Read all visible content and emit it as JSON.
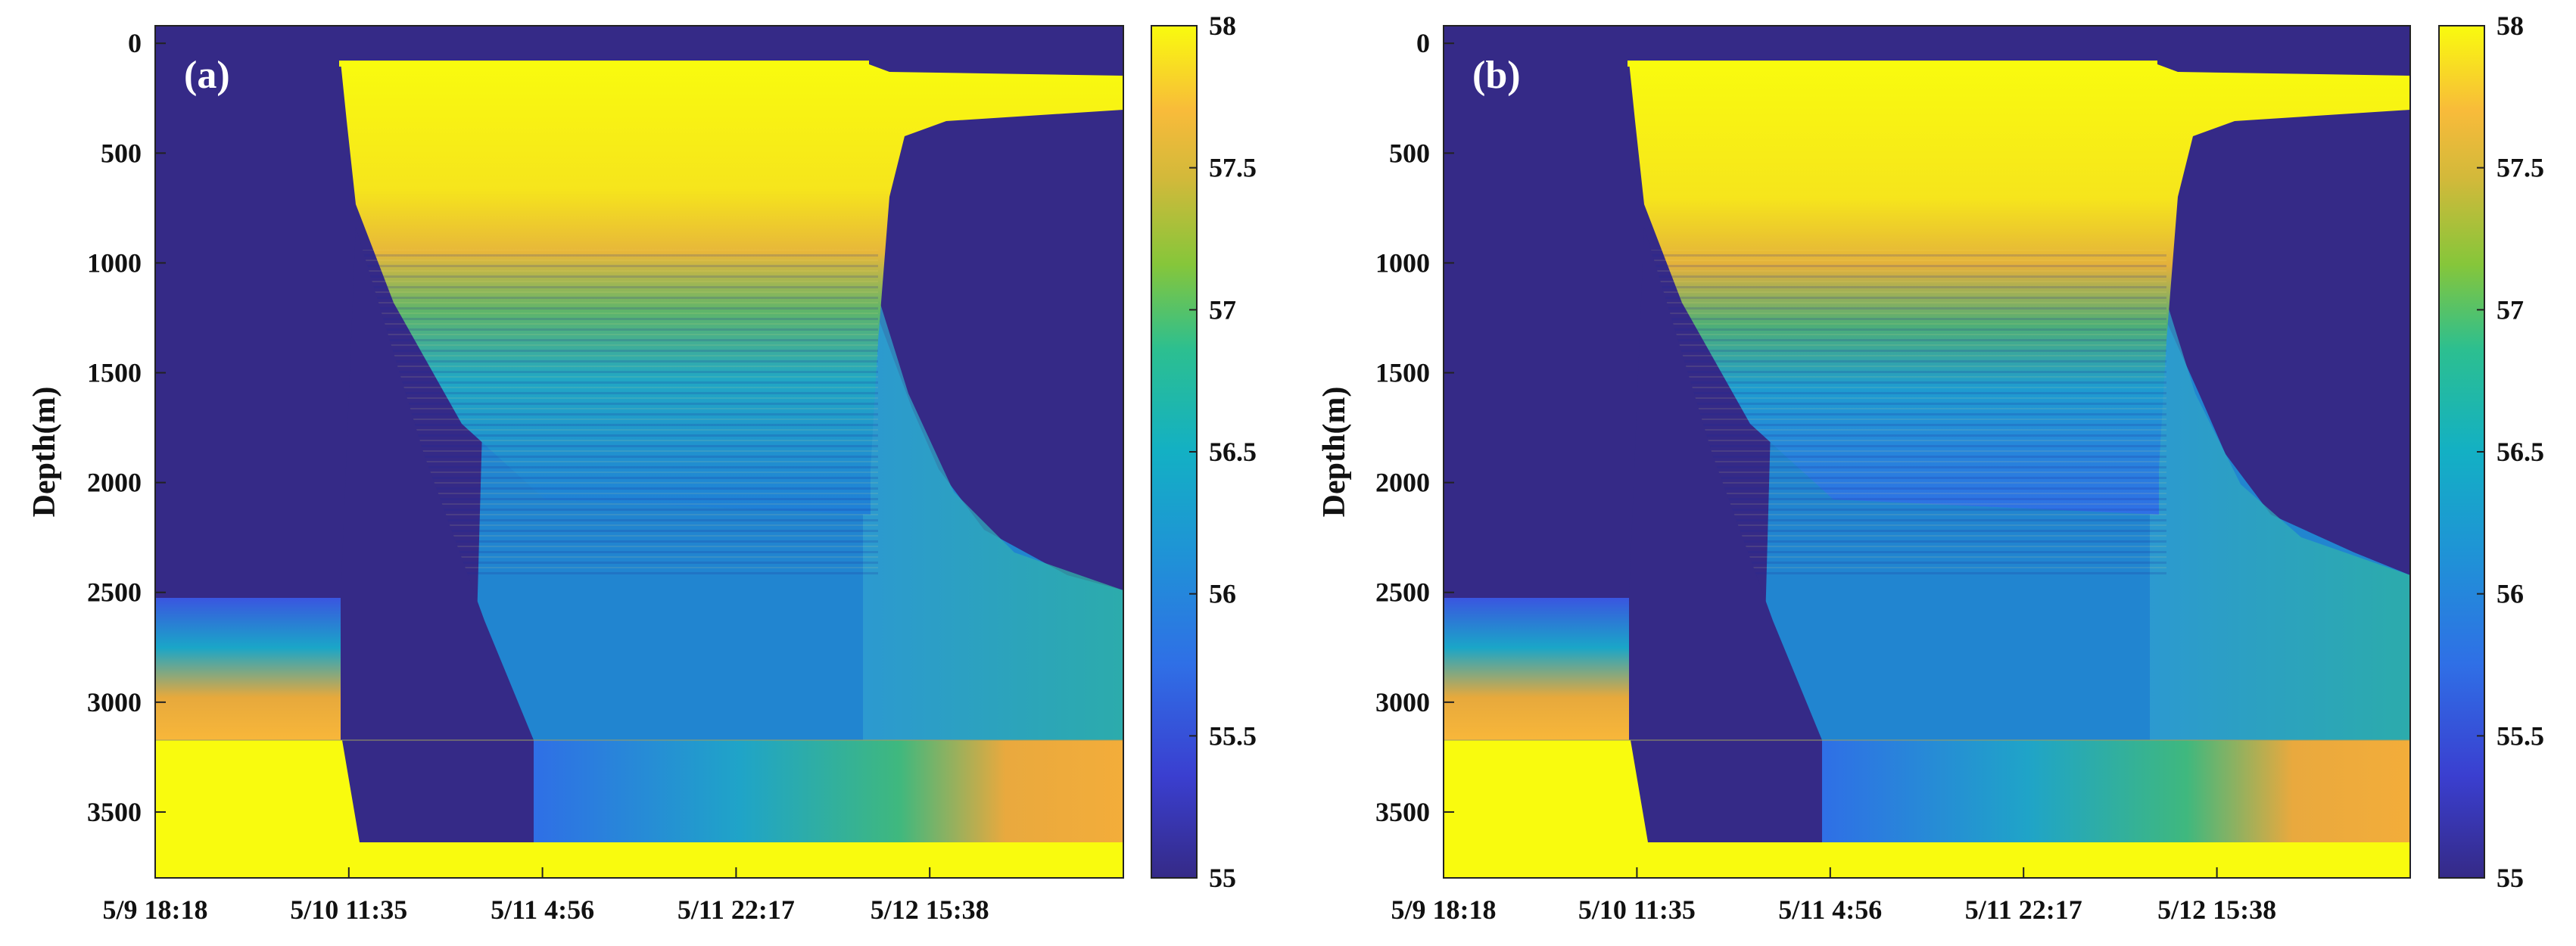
{
  "chart_data": [
    {
      "type": "heatmap",
      "panel_label": "(a)",
      "ylabel": "Depth(m)",
      "xlabel": "",
      "ylim": [
        3800,
        -80
      ],
      "y_ticks": [
        "0",
        "500",
        "1000",
        "1500",
        "2000",
        "2500",
        "3000",
        "3500"
      ],
      "x_tick_labels": [
        "5/9 18:18",
        "5/10 11:35",
        "5/11 4:56",
        "5/11 22:17",
        "5/12 15:38"
      ],
      "colorbar": {
        "min": 55,
        "max": 58,
        "ticks": [
          "58",
          "57.5",
          "57",
          "56.5",
          "56",
          "55.5",
          "55"
        ]
      },
      "layer_boundary_depth_m": 3170,
      "bottom_depth_m": 3640,
      "slab_top_depth_m": 100,
      "regions": [
        {
          "name": "cold-background",
          "value": 55
        },
        {
          "name": "warm-plume-core",
          "value": 58
        },
        {
          "name": "lower-plume",
          "value": 56.3
        },
        {
          "name": "left-deep-layer",
          "value": 57.4
        },
        {
          "name": "right-deep-layer",
          "value": 57.6
        }
      ]
    },
    {
      "type": "heatmap",
      "panel_label": "(b)",
      "ylabel": "Depth(m)",
      "xlabel": "",
      "ylim": [
        3800,
        -80
      ],
      "y_ticks": [
        "0",
        "500",
        "1000",
        "1500",
        "2000",
        "2500",
        "3000",
        "3500"
      ],
      "x_tick_labels": [
        "5/9 18:18",
        "5/10 11:35",
        "5/11 4:56",
        "5/11 22:17",
        "5/12 15:38"
      ],
      "colorbar": {
        "min": 55,
        "max": 58,
        "ticks": [
          "58",
          "57.5",
          "57",
          "56.5",
          "56",
          "55.5",
          "55"
        ]
      },
      "layer_boundary_depth_m": 3170,
      "bottom_depth_m": 3640,
      "slab_top_depth_m": 100,
      "regions": [
        {
          "name": "cold-background",
          "value": 55
        },
        {
          "name": "warm-plume-core",
          "value": 58
        },
        {
          "name": "lower-plume",
          "value": 56.2
        },
        {
          "name": "left-deep-layer",
          "value": 57.4
        },
        {
          "name": "right-deep-layer",
          "value": 57.5
        }
      ]
    }
  ],
  "colors": {
    "low": "#352a87",
    "mid_blue": "#1f8fd8",
    "cyan": "#1ab8b0",
    "green": "#7cc73e",
    "orange": "#f0b43c",
    "high": "#f9fb0e",
    "background": "#ffffff"
  }
}
